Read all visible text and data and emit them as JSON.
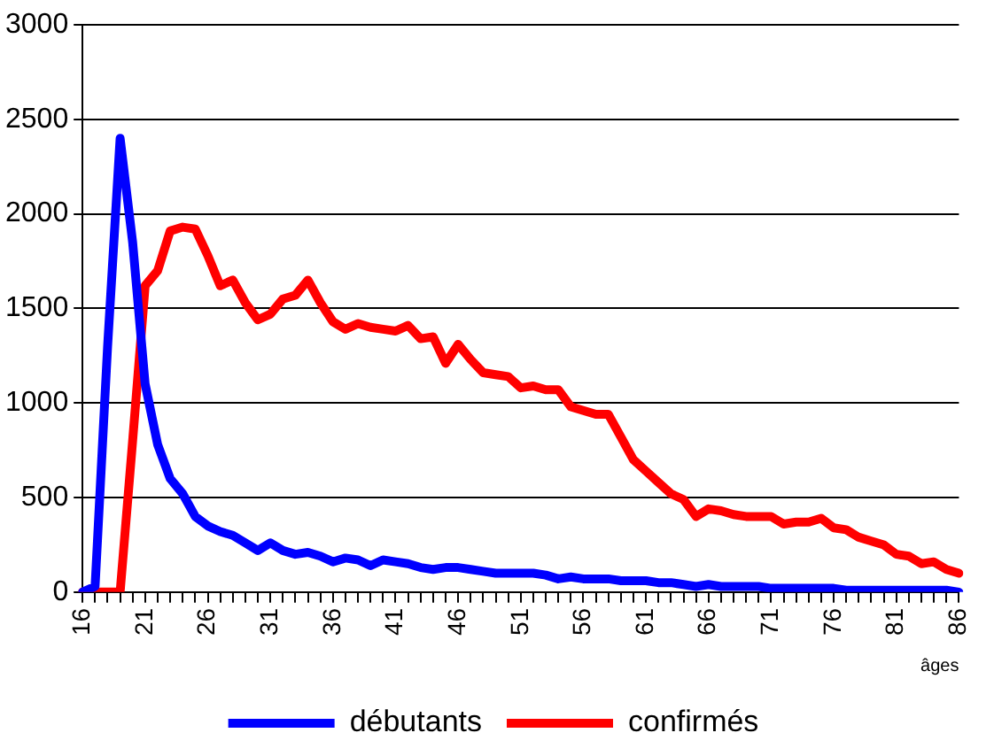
{
  "chart_data": {
    "type": "line",
    "xlabel": "âges",
    "categories": [
      "16",
      null,
      null,
      null,
      null,
      "21",
      null,
      null,
      null,
      null,
      "26",
      null,
      null,
      null,
      null,
      "31",
      null,
      null,
      null,
      null,
      "36",
      null,
      null,
      null,
      null,
      "41",
      null,
      null,
      null,
      null,
      "46",
      null,
      null,
      null,
      null,
      "51",
      null,
      null,
      null,
      null,
      "56",
      null,
      null,
      null,
      null,
      "61",
      null,
      null,
      null,
      null,
      "66",
      null,
      null,
      null,
      null,
      "71",
      null,
      null,
      null,
      null,
      "76",
      null,
      null,
      null,
      null,
      "81",
      null,
      null,
      null,
      null,
      "86"
    ],
    "series": [
      {
        "name": "débutants",
        "color": "#0000ff",
        "values": [
          0,
          30,
          1300,
          2400,
          1850,
          1100,
          780,
          600,
          520,
          400,
          350,
          320,
          300,
          260,
          220,
          260,
          220,
          200,
          210,
          190,
          160,
          180,
          170,
          140,
          170,
          160,
          150,
          130,
          120,
          130,
          130,
          120,
          110,
          100,
          100,
          100,
          100,
          90,
          70,
          80,
          70,
          70,
          70,
          60,
          60,
          60,
          50,
          50,
          40,
          30,
          40,
          30,
          30,
          30,
          30,
          20,
          20,
          20,
          20,
          20,
          20,
          10,
          10,
          10,
          10,
          10,
          10,
          10,
          10,
          10,
          0
        ]
      },
      {
        "name": "confirmés",
        "color": "#ff0000",
        "values": [
          0,
          0,
          0,
          0,
          800,
          1620,
          1700,
          1910,
          1930,
          1920,
          1780,
          1620,
          1650,
          1530,
          1440,
          1470,
          1550,
          1570,
          1650,
          1530,
          1430,
          1390,
          1420,
          1400,
          1390,
          1380,
          1410,
          1340,
          1350,
          1210,
          1310,
          1230,
          1160,
          1150,
          1140,
          1080,
          1090,
          1070,
          1070,
          980,
          960,
          940,
          940,
          820,
          700,
          640,
          580,
          520,
          490,
          400,
          440,
          430,
          410,
          400,
          400,
          400,
          360,
          370,
          370,
          390,
          340,
          330,
          290,
          270,
          250,
          200,
          190,
          150,
          160,
          120,
          100
        ]
      }
    ],
    "ylim": [
      0,
      3000
    ],
    "yticks": [
      0,
      500,
      1000,
      1500,
      2000,
      2500,
      3000
    ],
    "grid": "y",
    "legend": "bottom",
    "marker": "none",
    "line_style": "solid"
  }
}
